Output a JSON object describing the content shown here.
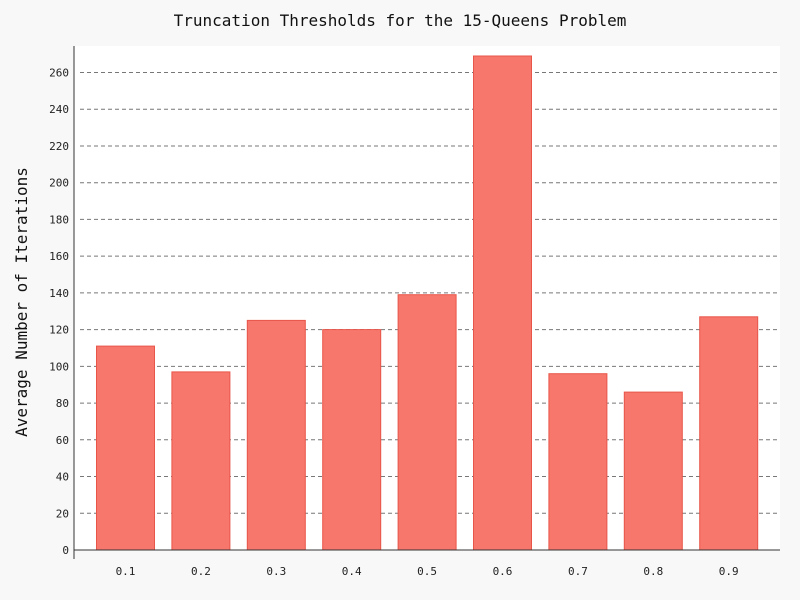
{
  "chart_data": {
    "type": "bar",
    "title": "Truncation Thresholds for the 15-Queens Problem",
    "xlabel": "",
    "ylabel": "Average Number of Iterations",
    "categories": [
      "0.1",
      "0.2",
      "0.3",
      "0.4",
      "0.5",
      "0.6",
      "0.7",
      "0.8",
      "0.9"
    ],
    "values": [
      111,
      97,
      125,
      120,
      139,
      269,
      96,
      86,
      127
    ],
    "ylim": [
      0,
      270
    ],
    "yticks": [
      0,
      20,
      40,
      60,
      80,
      100,
      120,
      140,
      160,
      180,
      200,
      220,
      240,
      260
    ],
    "grid": true,
    "grid_style": "dashed horizontal",
    "legend": "none",
    "colors": {
      "bar_fill": "#f8776c",
      "bar_edge": "#e8564a",
      "plot_background": "#ffffff",
      "figure_background": "#f8f8f8",
      "grid": "#777777",
      "axis": "#333333"
    }
  }
}
